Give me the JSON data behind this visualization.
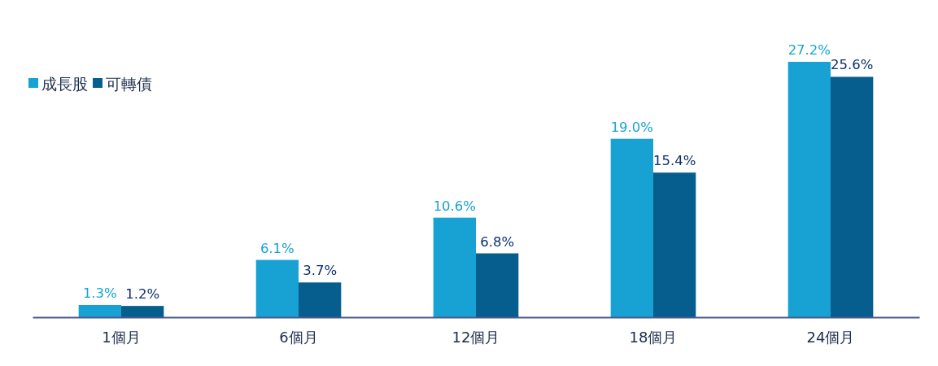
{
  "chart_data": {
    "type": "bar",
    "categories": [
      "1個月",
      "6個月",
      "12個月",
      "18個月",
      "24個月"
    ],
    "series": [
      {
        "name": "成長股",
        "color": "#17a2d3",
        "values": [
          1.3,
          6.1,
          10.6,
          19.0,
          27.2
        ],
        "value_labels": [
          "1.3%",
          "6.1%",
          "10.6%",
          "19.0%",
          "27.2%"
        ]
      },
      {
        "name": "可轉債",
        "color": "#055e8d",
        "values": [
          1.2,
          3.7,
          6.8,
          15.4,
          25.6
        ],
        "value_labels": [
          "1.2%",
          "3.7%",
          "6.8%",
          "15.4%",
          "25.6%"
        ]
      }
    ],
    "legend": "top left"
  }
}
